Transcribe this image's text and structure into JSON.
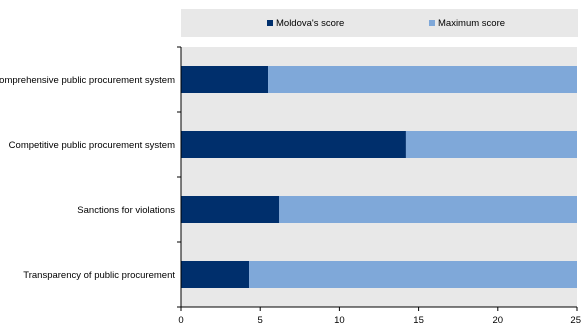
{
  "chart_data": {
    "type": "bar",
    "orientation": "horizontal",
    "stacked": true,
    "categories": [
      "Comprehensive public procurement system",
      "Competitive public procurement system",
      "Sanctions for violations",
      "Transparency of public procurement"
    ],
    "series": [
      {
        "name": "Moldova's score",
        "color": "#002f6c",
        "values": [
          5.5,
          14.2,
          6.2,
          4.3
        ]
      },
      {
        "name": "Maximum score",
        "color": "#7fa8d9",
        "values": [
          19.5,
          10.8,
          18.8,
          20.7
        ]
      }
    ],
    "xlim": [
      0,
      25
    ],
    "x_ticks": [
      "0",
      "5",
      "10",
      "15",
      "20",
      "25"
    ],
    "legend_position": "top",
    "grid": false,
    "plot_background": "#e8e8e8"
  }
}
